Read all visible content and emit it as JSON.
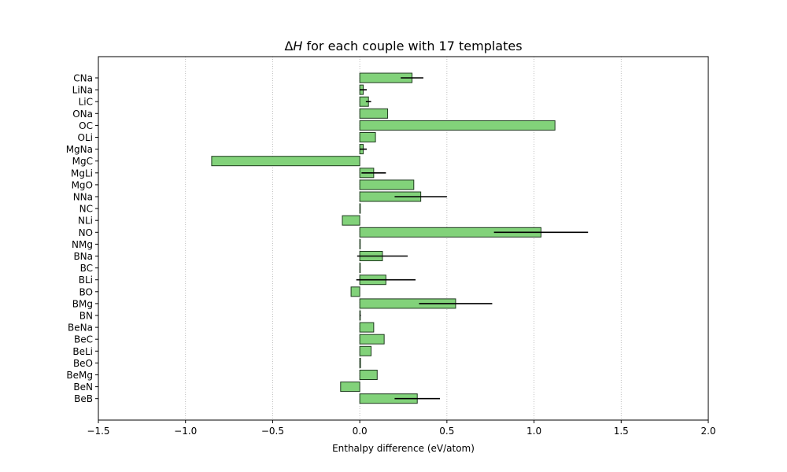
{
  "chart_data": {
    "type": "bar",
    "orientation": "horizontal",
    "title": "ΔH for each couple with 17 templates",
    "title_parts": [
      "Δ",
      "H",
      " for each couple with 17 templates"
    ],
    "xlabel": "Enthalpy difference (eV/atom)",
    "ylabel": "",
    "xlim": [
      -1.5,
      2.0
    ],
    "x_ticks": [
      -1.5,
      -1.0,
      -0.5,
      0.0,
      0.5,
      1.0,
      1.5,
      2.0
    ],
    "x_tick_labels": [
      "−1.5",
      "−1.0",
      "−0.5",
      "0.0",
      "0.5",
      "1.0",
      "1.5",
      "2.0"
    ],
    "grid": "x-dotted",
    "bar_color": "#82d27a",
    "bar_edge_color": "#1e3a1e",
    "error_color": "#000000",
    "categories": [
      "CNa",
      "LiNa",
      "LiC",
      "ONa",
      "OC",
      "OLi",
      "MgNa",
      "MgC",
      "MgLi",
      "MgO",
      "NNa",
      "NC",
      "NLi",
      "NO",
      "NMg",
      "BNa",
      "BC",
      "BLi",
      "BO",
      "BMg",
      "BN",
      "BeNa",
      "BeC",
      "BeLi",
      "BeO",
      "BeMg",
      "BeN",
      "BeB"
    ],
    "values": [
      0.3,
      0.02,
      0.05,
      0.16,
      1.12,
      0.09,
      0.02,
      -0.85,
      0.08,
      0.31,
      0.35,
      0.003,
      -0.1,
      1.04,
      0.0,
      0.13,
      0.0,
      0.15,
      -0.05,
      0.55,
      0.003,
      0.08,
      0.14,
      0.065,
      0.004,
      0.1,
      -0.11,
      0.33
    ],
    "errors": [
      0.065,
      0.02,
      0.015,
      0.0,
      0.0,
      0.0,
      0.02,
      0.0,
      0.07,
      0.0,
      0.15,
      0.0,
      0.0,
      0.27,
      0.0,
      0.145,
      0.0,
      0.17,
      0.0,
      0.21,
      0.003,
      0.0,
      0.0,
      0.0,
      0.0,
      0.0,
      0.0,
      0.13
    ]
  }
}
